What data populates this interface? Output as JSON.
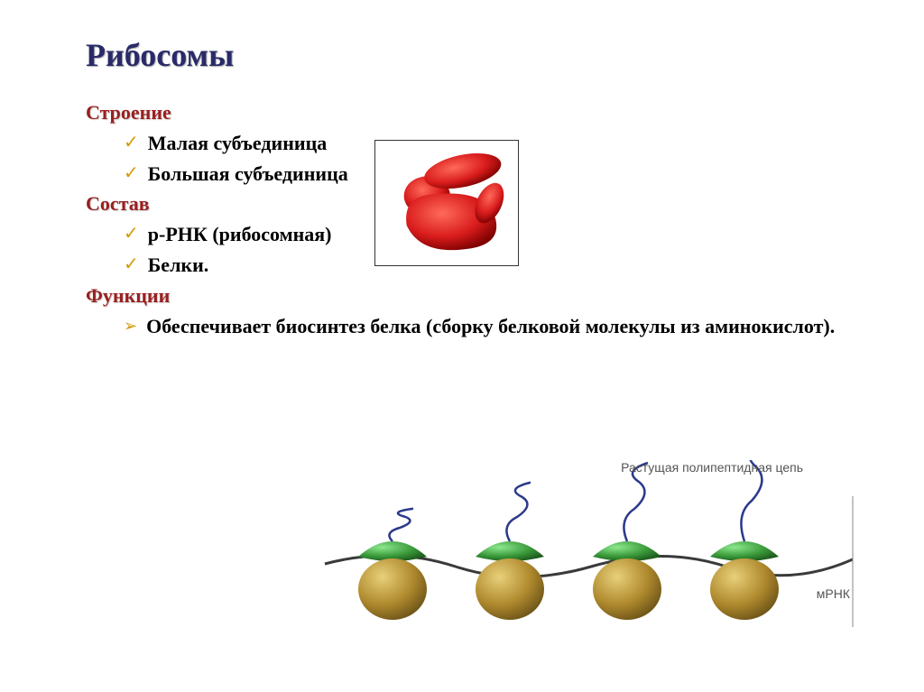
{
  "title": "Рибосомы",
  "sections": [
    {
      "header": "Строение",
      "header_color": "#9a1f1f",
      "bullet_style": "check",
      "bullet_color": "#d49a00",
      "items": [
        "Малая субъединица",
        "Большая  субъединица"
      ]
    },
    {
      "header": "Состав",
      "header_color": "#9a1f1f",
      "bullet_style": "check",
      "bullet_color": "#d49a00",
      "items": [
        "р-РНК (рибосомная)",
        "Белки."
      ]
    },
    {
      "header": "Функции",
      "header_color": "#9a1f1f",
      "bullet_style": "arrow",
      "bullet_color": "#d49a00",
      "items": [
        "Обеспечивает биосинтез белка (сборку белковой молекулы из аминокислот)."
      ]
    }
  ],
  "title_color": "#2a2a6a",
  "ribosome_diagram": {
    "bg": "#ffffff",
    "shape_color": "#d91c1c",
    "shadow_color": "#5a0000"
  },
  "polysome_diagram": {
    "label_top": "Растущая полипептидная цепь",
    "label_right": "мРНК",
    "strand_color": "#3a3a3a",
    "chain_color": "#2b3a8a",
    "large_subunit_color": "#b08a2e",
    "large_subunit_highlight": "#d9b95a",
    "small_subunit_color": "#3a9a3a",
    "small_subunit_highlight": "#6ac86a",
    "ribosome_count": 4
  }
}
